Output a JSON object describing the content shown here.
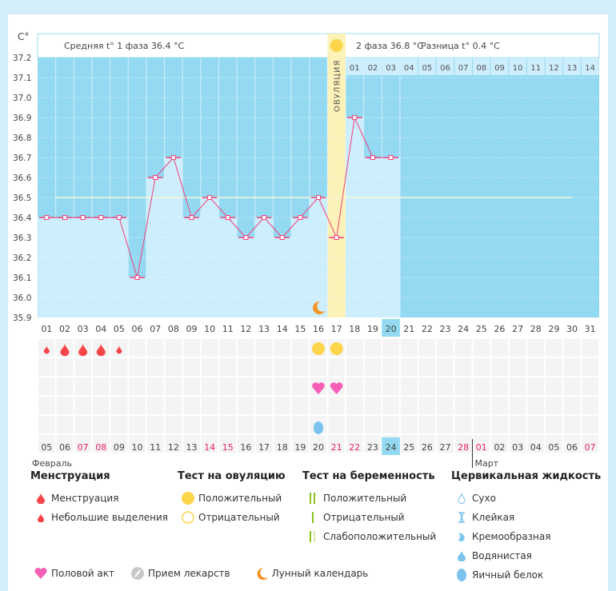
{
  "chart_data": {
    "type": "line",
    "ylabel": "C°",
    "ylim": [
      35.9,
      37.2
    ],
    "yticks": [
      "37.2",
      "37.1",
      "37.0",
      "36.9",
      "36.8",
      "36.7",
      "36.6",
      "36.5",
      "36.4",
      "36.3",
      "36.2",
      "36.1",
      "36.0",
      "35.9"
    ],
    "cycle_days": [
      "01",
      "02",
      "03",
      "04",
      "05",
      "06",
      "07",
      "08",
      "09",
      "10",
      "11",
      "12",
      "13",
      "14",
      "15",
      "16",
      "17",
      "18",
      "19",
      "20",
      "21",
      "22",
      "23",
      "24",
      "25",
      "26",
      "27",
      "28",
      "29",
      "30",
      "31"
    ],
    "temperatures": [
      36.4,
      36.4,
      36.4,
      36.4,
      36.4,
      36.1,
      36.6,
      36.7,
      36.4,
      36.5,
      36.4,
      36.3,
      36.4,
      36.3,
      36.4,
      36.5,
      36.3,
      36.9,
      36.7,
      36.7
    ],
    "coverline": 36.5,
    "ovulation_day": 17,
    "today_day": 20,
    "phase2_days": [
      "01",
      "02",
      "03",
      "04",
      "05",
      "06",
      "07",
      "08",
      "09",
      "10",
      "11",
      "12",
      "13",
      "14"
    ],
    "calendar_dates": [
      "05",
      "06",
      "07",
      "08",
      "09",
      "10",
      "11",
      "12",
      "13",
      "14",
      "15",
      "16",
      "17",
      "18",
      "19",
      "20",
      "21",
      "22",
      "23",
      "24",
      "25",
      "26",
      "27",
      "28",
      "01",
      "02",
      "03",
      "04",
      "05",
      "06",
      "07"
    ],
    "weekend_dates_index": [
      2,
      3,
      9,
      10,
      16,
      17,
      23,
      24,
      30
    ],
    "months": [
      "Февраль",
      "Март"
    ],
    "month_break_index": 24,
    "markers": {
      "menstruation": {
        "1": "light",
        "2": "heavy",
        "3": "heavy",
        "4": "heavy",
        "5": "light"
      },
      "ovulation_test_positive": [
        16,
        17
      ],
      "intercourse": [
        16,
        17
      ],
      "moon": [
        16
      ],
      "cervical_egg_white": [
        16
      ]
    },
    "colors": {
      "bg": "#93d9f2",
      "bar": "#cdeefc",
      "line": "#f0407a",
      "ovulation": "#fbf2b8",
      "weekend": "#e8245c",
      "today": "#93d9f2"
    }
  },
  "header": {
    "phase1": "Средняя t° 1 фаза 36.4 °C",
    "phase2": "2 фаза 36.8 °C",
    "diff": "Разница t° 0.4 °C",
    "ovulation": "ОВУЛЯЦИЯ"
  },
  "legend": {
    "menstruation": {
      "title": "Менструация",
      "items": [
        "Менструация",
        "Небольшие выделения"
      ]
    },
    "ovulation_test": {
      "title": "Тест на овуляцию",
      "items": [
        "Положительный",
        "Отрицательный"
      ]
    },
    "pregnancy_test": {
      "title": "Тест на беременность",
      "items": [
        "Положительный",
        "Отрицательный",
        "Слабоположительный"
      ]
    },
    "cervical": {
      "title": "Цервикальная жидкость",
      "items": [
        "Сухо",
        "Клейкая",
        "Кремообразная",
        "Водянистая",
        "Яичный белок"
      ]
    },
    "other": [
      "Половой акт",
      "Прием лекарств",
      "Лунный календарь"
    ]
  }
}
